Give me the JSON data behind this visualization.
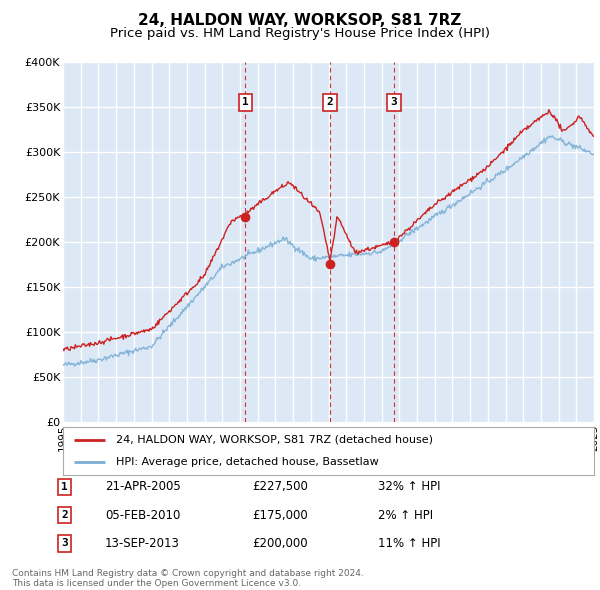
{
  "title": "24, HALDON WAY, WORKSOP, S81 7RZ",
  "subtitle": "Price paid vs. HM Land Registry's House Price Index (HPI)",
  "hpi_line_color": "#7bafd4",
  "price_line_color": "#cc2222",
  "background_color": "#ffffff",
  "plot_bg_color": "#dce8f5",
  "grid_color": "#ffffff",
  "ylim": [
    0,
    400000
  ],
  "yticks": [
    0,
    50000,
    100000,
    150000,
    200000,
    250000,
    300000,
    350000,
    400000
  ],
  "ytick_labels": [
    "£0",
    "£50K",
    "£100K",
    "£150K",
    "£200K",
    "£250K",
    "£300K",
    "£350K",
    "£400K"
  ],
  "xstart": 1995,
  "xend": 2025,
  "transactions": [
    {
      "label": "1",
      "date": 2005.3,
      "price": 227500,
      "hpi_pct": "32%",
      "date_str": "21-APR-2005",
      "price_str": "£227,500"
    },
    {
      "label": "2",
      "date": 2010.09,
      "price": 175000,
      "hpi_pct": "2%",
      "date_str": "05-FEB-2010",
      "price_str": "£175,000"
    },
    {
      "label": "3",
      "date": 2013.7,
      "price": 200000,
      "hpi_pct": "11%",
      "date_str": "13-SEP-2013",
      "price_str": "£200,000"
    }
  ],
  "legend_label_red": "24, HALDON WAY, WORKSOP, S81 7RZ (detached house)",
  "legend_label_blue": "HPI: Average price, detached house, Bassetlaw",
  "footer_line1": "Contains HM Land Registry data © Crown copyright and database right 2024.",
  "footer_line2": "This data is licensed under the Open Government Licence v3.0."
}
